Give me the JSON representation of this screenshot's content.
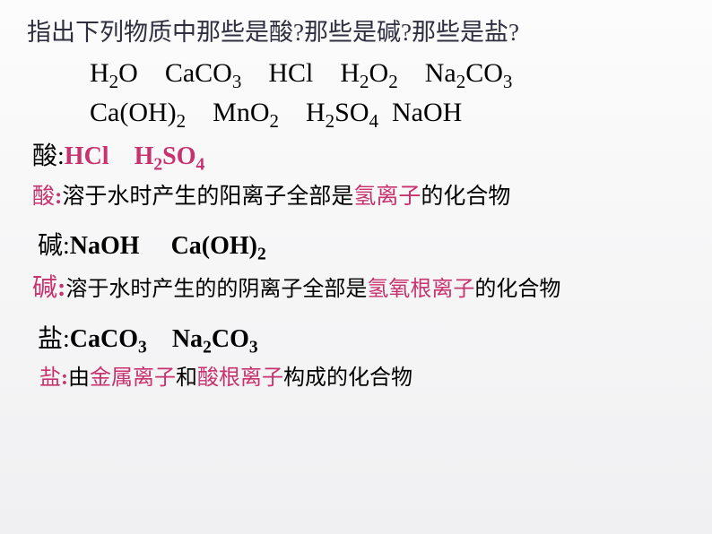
{
  "question": "指出下列物质中那些是酸?那些是碱?那些是盐?",
  "formulas_line1_parts": [
    "H",
    "2",
    "O CaCO",
    "3",
    " HCl H",
    "2",
    "O",
    "2",
    " Na",
    "2",
    "CO",
    "3"
  ],
  "formulas_line2_parts": [
    "Ca(OH)",
    "2",
    " MnO",
    "2",
    " H",
    "2",
    "SO",
    "4",
    " NaOH"
  ],
  "acid_label": "酸",
  "acid_colon": ":",
  "acid_answers_parts": [
    "HCl H",
    "2",
    "SO",
    "4"
  ],
  "acid_def_prefix": "溶于水时产生的阳离子全部是",
  "acid_def_highlight": "氢离子",
  "acid_def_suffix": "的化合物",
  "base_label": "碱",
  "base_colon": ":",
  "base_answers_parts": [
    "NaOH  Ca(OH)",
    "2"
  ],
  "base_def_prefix": "溶于水时产生的的阴离子全部是",
  "base_def_highlight": "氢氧根离子",
  "base_def_suffix": "的化合物",
  "salt_label": "盐",
  "salt_colon": ":",
  "salt_answers_parts": [
    "CaCO",
    "3",
    " Na",
    "2",
    "CO",
    "3"
  ],
  "salt_def_prefix": "由",
  "salt_def_h1": "金属离子",
  "salt_def_mid": "和",
  "salt_def_h2": "酸根离子",
  "salt_def_suffix": "构成的化合物",
  "colors": {
    "highlight": "#c8326e",
    "text": "#000000",
    "question": "#2f2f3f",
    "bg_top": "#fcfcfc",
    "bg_bottom": "#f0f0f2"
  }
}
